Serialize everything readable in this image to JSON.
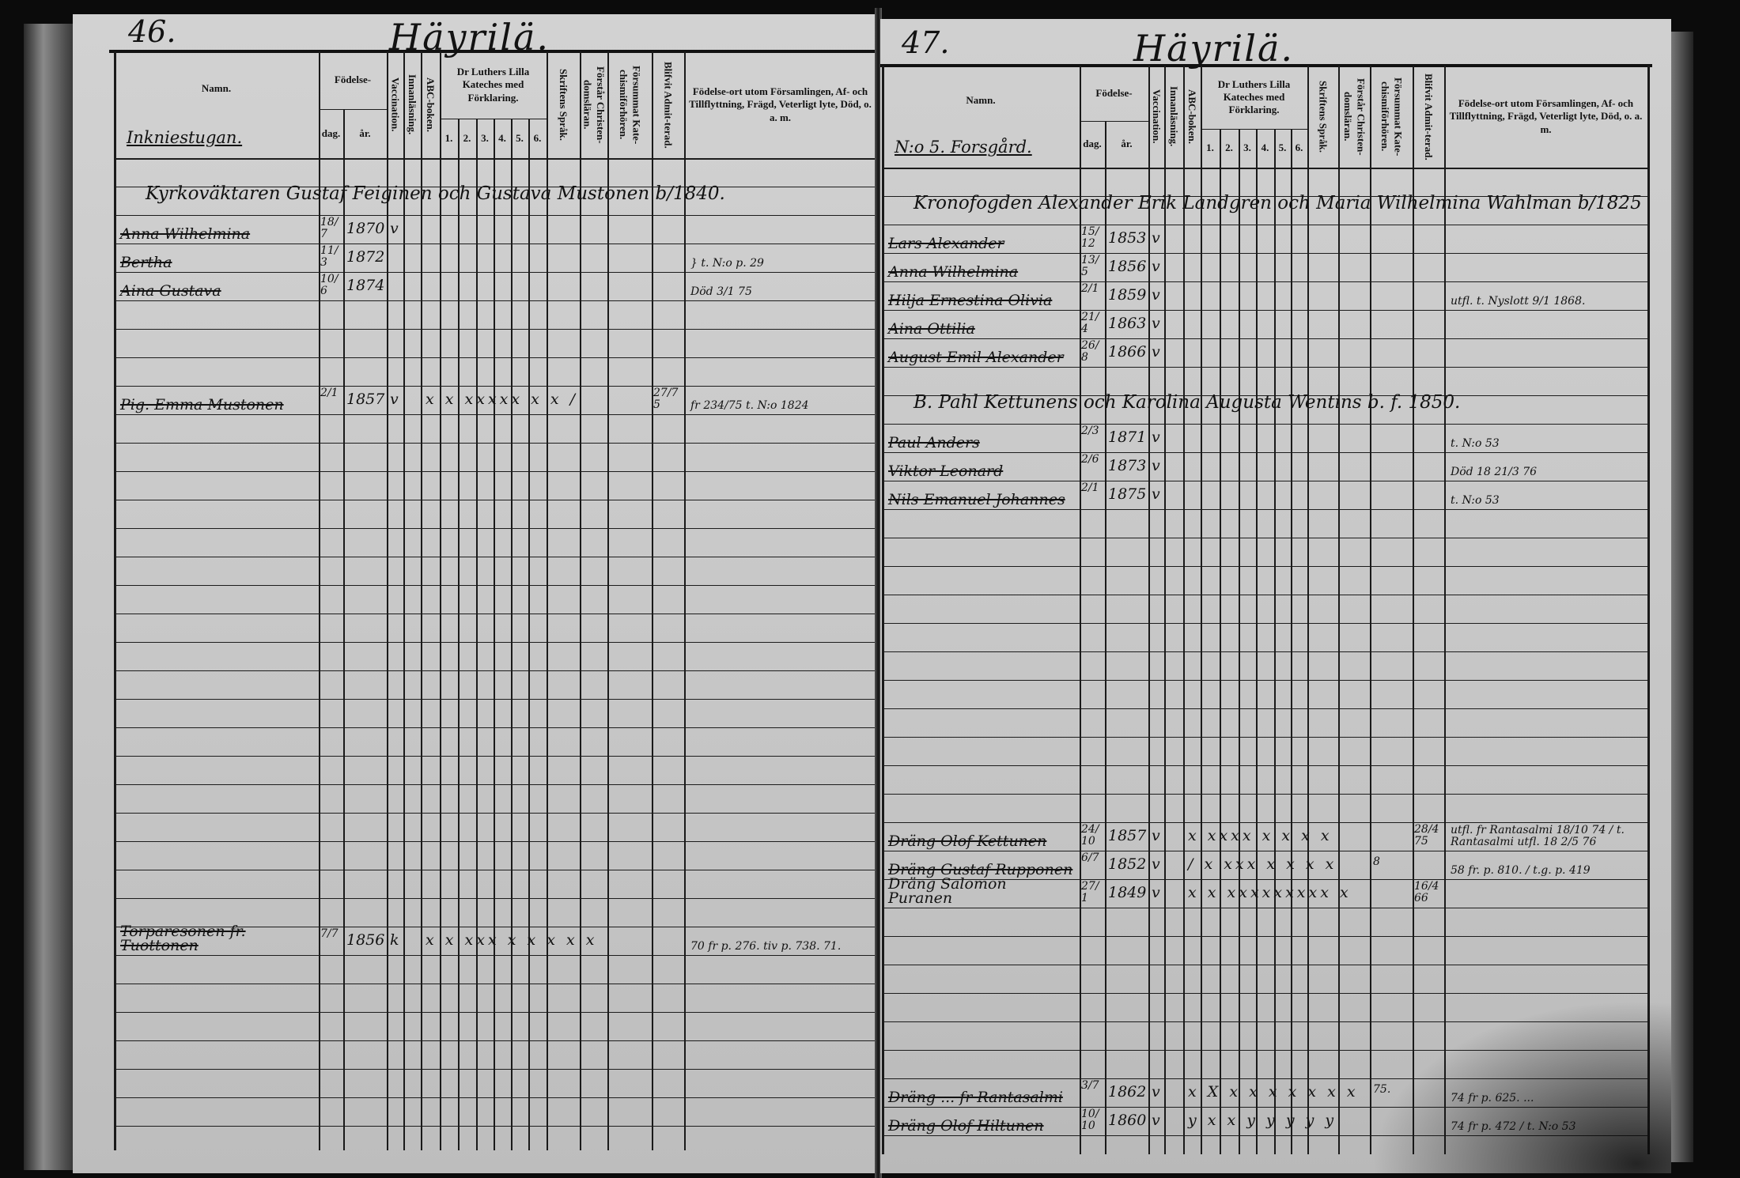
{
  "columns_header": {
    "name": "Namn.",
    "birth": "Födelse-",
    "day": "dag.",
    "year": "år.",
    "vaccination": "Vaccination.",
    "reading": "Innanläsning.",
    "abc": "ABC-boken.",
    "catechism": "Dr Luthers Lilla Kateches med Förklaring.",
    "catechism_parts": [
      "1.",
      "2.",
      "3.",
      "4.",
      "5.",
      "6."
    ],
    "scripture": "Skriftens Språk.",
    "understands": "Förstår Christen-domsläran.",
    "missed": "Försummat Kate-chismiförhören.",
    "admitted": "Blifvit Admit-terad.",
    "notes": "Födelse-ort utom Församlingen, Af- och Tillflyttning, Frägd, Veterligt lyte, Död, o. a. m."
  },
  "left_page": {
    "page_number": "46.",
    "title": "Häyrilä.",
    "subheading": "Inkniestugan.",
    "entries": [
      {
        "type": "family",
        "text": "Kyrkoväktaren Gustaf Feiginen och Gustava Mustonen b/1840."
      },
      {
        "name": "Anna Wilhelmina",
        "day": "18/7",
        "year": "1870",
        "vacc": "v",
        "struck": true
      },
      {
        "name": "Bertha",
        "day": "11/3",
        "year": "1872",
        "note": "} t. N:o p. 29",
        "struck": true
      },
      {
        "name": "Aina Gustava",
        "day": "10/6",
        "year": "1874",
        "note": "Död 3/1 75",
        "struck": true
      },
      {
        "name": "Pig. Emma Mustonen",
        "day": "2/1",
        "year": "1857",
        "vacc": "v",
        "marks": "x x xxxxx x x /",
        "admitted": "27/75",
        "note": "fr 234/75 t. N:o 1824",
        "struck": true
      },
      {
        "name": "Torparesonen fr. Tuottonen",
        "day": "7/7",
        "year": "1856",
        "vacc": "k",
        "marks": "x x xxx x x x x x",
        "note": "70 fr p. 276. tiv p. 738. 71.",
        "struck": true
      }
    ]
  },
  "right_page": {
    "page_number": "47.",
    "title": "Häyrilä.",
    "subheading": "N:o 5. Forsgård.",
    "entries": [
      {
        "type": "family",
        "text": "Kronofogden Alexander Erik Landgren och Maria Wilhelmina Wahlman b/1825"
      },
      {
        "name": "Lars Alexander",
        "day": "15/12",
        "year": "1853",
        "vacc": "v",
        "struck": true
      },
      {
        "name": "Anna Wilhelmina",
        "day": "13/5",
        "year": "1856",
        "vacc": "v",
        "struck": true
      },
      {
        "name": "Hilja Ernestina Olivia",
        "day": "2/1",
        "year": "1859",
        "vacc": "v",
        "note": "utfl. t. Nyslott 9/1 1868.",
        "struck": true
      },
      {
        "name": "Aina Ottilia",
        "day": "21/4",
        "year": "1863",
        "vacc": "v",
        "struck": true
      },
      {
        "name": "August Emil Alexander",
        "day": "26/8",
        "year": "1866",
        "vacc": "v",
        "struck": true
      },
      {
        "type": "family",
        "text": "B. Pahl Kettunens och Karolina Augusta Wentins b. f. 1850."
      },
      {
        "name": "Paul Anders",
        "day": "2/3",
        "year": "1871",
        "vacc": "v",
        "note": "t. N:o 53",
        "struck": true
      },
      {
        "name": "Viktor Leonard",
        "day": "2/6",
        "year": "1873",
        "vacc": "v",
        "note": "Död 18 21/3 76",
        "struck": true
      },
      {
        "name": "Nils Emanuel Johannes",
        "day": "2/1",
        "year": "1875",
        "vacc": "v",
        "note": "t. N:o 53",
        "struck": true
      },
      {
        "name": "Dräng Olof Kettunen",
        "day": "24/10",
        "year": "1857",
        "vacc": "v",
        "marks": "x  xxxx x x x x",
        "admitted": "28/4 75",
        "note": "utfl. fr Rantasalmi 18/10 74 / t. Rantasalmi utfl. 18 2/5 76",
        "struck": true
      },
      {
        "name": "Dräng Gustaf Rupponen",
        "day": "6/7",
        "year": "1852",
        "vacc": "v",
        "marks": "/ x xxx x x x x",
        "missed": "8",
        "note": "58 fr. p. 810. / t.g. p. 419",
        "struck": true
      },
      {
        "name": "Dräng Salomon Puranen",
        "day": "27/1",
        "year": "1849",
        "vacc": "v",
        "marks": "x x xxxxxxxxx x",
        "admitted": "16/4 66",
        "struck": false
      },
      {
        "name": "Dräng ... fr Rantasalmi",
        "day": "3/7",
        "year": "1862",
        "vacc": "v",
        "marks": "x X x x x x x x x",
        "missed": "75.",
        "note": "74 fr p. 625. ...",
        "struck": true
      },
      {
        "name": "Dräng Olof Hiltunen",
        "day": "10/10",
        "year": "1860",
        "vacc": "v",
        "marks": "y x x y y y y y",
        "note": "74 fr p. 472 / t. N:o 53",
        "struck": true
      }
    ]
  }
}
